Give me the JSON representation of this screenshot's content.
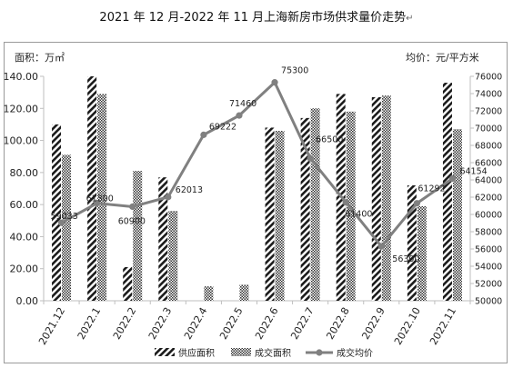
{
  "title": "2021 年 12 月-2022 年 11 月上海新房市场供求量价走势",
  "title_mark": "↵",
  "chart_data": {
    "type": "bar",
    "categories": [
      "2021.12",
      "2022.1",
      "2022.2",
      "2022.3",
      "2022.4",
      "2022.5",
      "2022.6",
      "2022.7",
      "2022.8",
      "2022.9",
      "2022.10",
      "2022.11"
    ],
    "ylabel": "面积：万㎡",
    "y2label": "均价：元/平方米",
    "ylim": [
      0,
      140
    ],
    "y_ticks": [
      "0.00",
      "20.00",
      "40.00",
      "60.00",
      "80.00",
      "100.00",
      "120.00",
      "140.00"
    ],
    "y2lim": [
      50000,
      76000
    ],
    "y2_ticks": [
      "50000",
      "52000",
      "54000",
      "56000",
      "58000",
      "60000",
      "62000",
      "64000",
      "66000",
      "68000",
      "70000",
      "72000",
      "74000",
      "76000"
    ],
    "series": [
      {
        "name": "供应面积",
        "kind": "bar",
        "values": [
          110,
          140,
          21,
          77,
          0,
          0,
          108,
          114,
          129,
          127,
          72,
          136
        ]
      },
      {
        "name": "成交面积",
        "kind": "bar",
        "values": [
          91,
          129,
          81,
          56,
          9,
          10,
          106,
          120,
          118,
          128,
          59,
          107
        ]
      },
      {
        "name": "成交均价",
        "kind": "line",
        "axis": "y2",
        "values": [
          59033,
          61300,
          60900,
          62013,
          69222,
          71460,
          75300,
          66500,
          61400,
          56300,
          61292,
          64154
        ]
      }
    ],
    "data_labels": [
      "59033",
      "61300",
      "60900",
      "62013",
      "69222",
      "71460",
      "75300",
      "66500",
      "61400",
      "56300",
      "61292",
      "64154"
    ],
    "colors": {
      "line": "#808080",
      "bar_edge": "#1a1a1a",
      "axis": "#bfbfbf"
    },
    "legend": "bottom",
    "grid": false
  }
}
